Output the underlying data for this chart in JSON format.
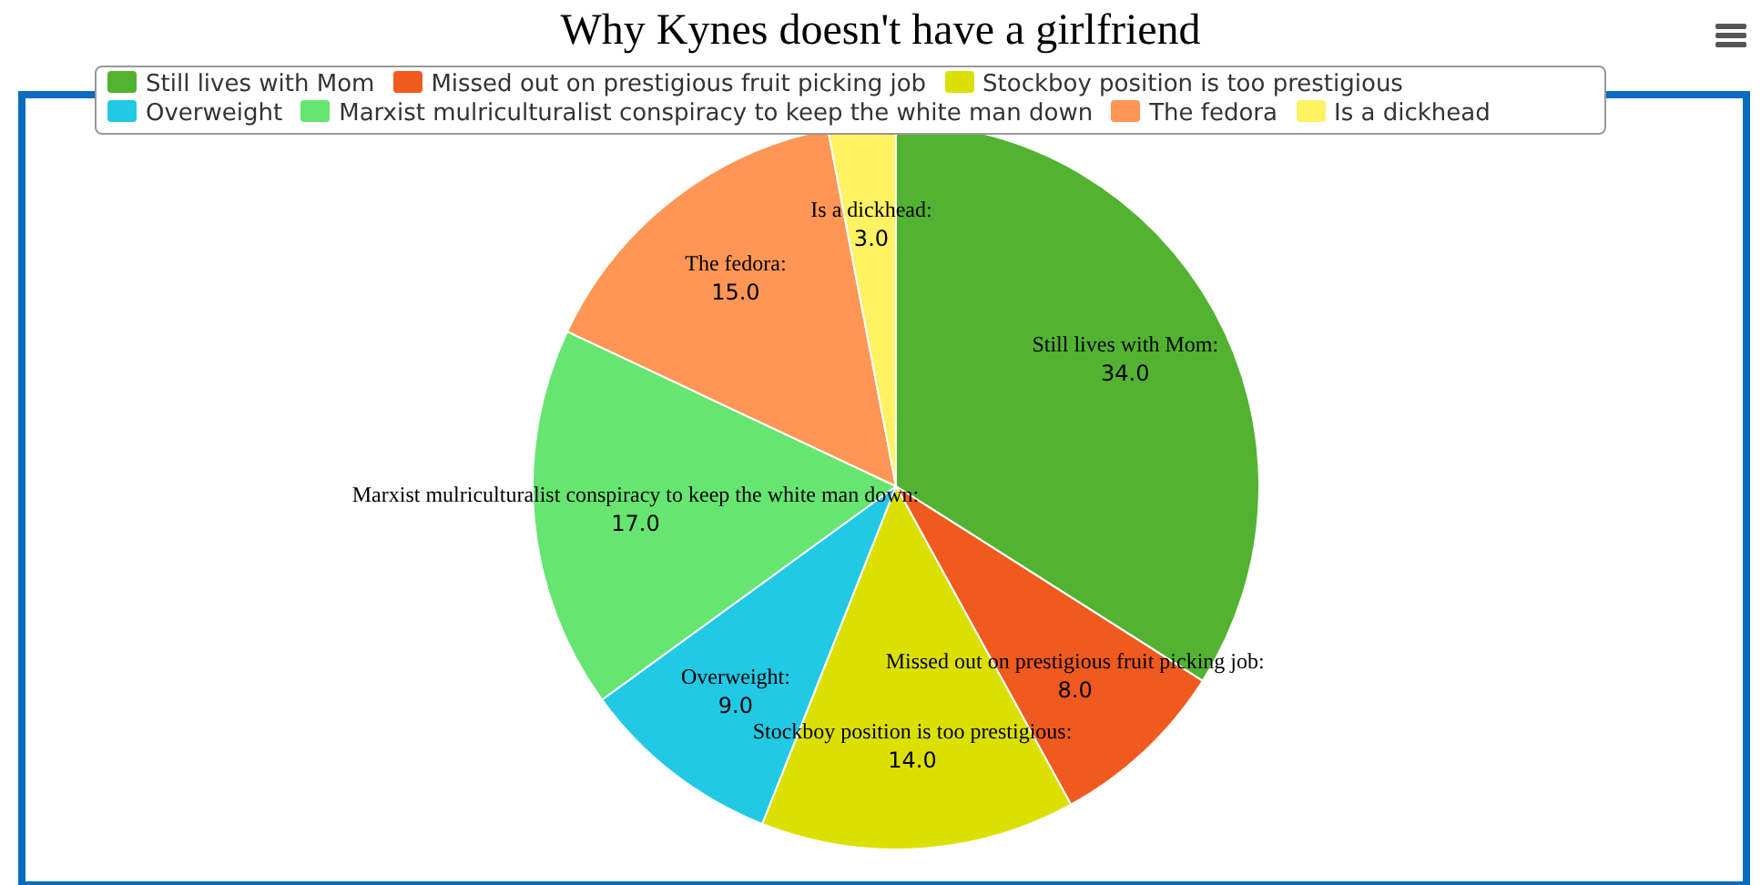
{
  "chart_data": {
    "type": "pie",
    "title": "Why Kynes doesn't have a girlfriend",
    "categories": [
      "Still lives with Mom",
      "Missed out on prestigious fruit picking job",
      "Stockboy position is too prestigious",
      "Overweight",
      "Marxist mulriculturalist conspiracy to keep the white man down",
      "The fedora",
      "Is a dickhead"
    ],
    "values": [
      34,
      8,
      14,
      9,
      17,
      15,
      3
    ],
    "value_labels": [
      "34.0",
      "8.0",
      "14.0",
      "9.0",
      "17.0",
      "15.0",
      "3.0"
    ],
    "colors": [
      "#52b332",
      "#f05a1f",
      "#dce000",
      "#22c9e5",
      "#66e571",
      "#ff9655",
      "#fff263"
    ],
    "annotations": [
      "Still lives with Mom:",
      "Missed out on prestigious fruit picking job:",
      "Stockboy position is too prestigious:",
      "Overweight:",
      "Marxist mulriculturalist conspiracy to keep the white man down:",
      "The fedora:",
      "Is a dickhead:"
    ],
    "legend": "top"
  }
}
